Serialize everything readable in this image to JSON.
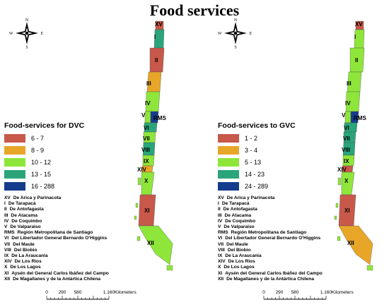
{
  "title": "Food services",
  "compass": {
    "n": "N",
    "s": "S",
    "e": "E",
    "w": "W"
  },
  "map_labels": [
    "XV",
    "I",
    "II",
    "III",
    "IV",
    "V",
    "RMS",
    "VI",
    "VII",
    "VIII",
    "IX",
    "XIV",
    "X",
    "XI",
    "XII"
  ],
  "panels": [
    {
      "legend_title": "Food-services for DVC",
      "legend": [
        {
          "label": "6 - 7",
          "color": "#c8584a"
        },
        {
          "label": "8 - 9",
          "color": "#e8a628"
        },
        {
          "label": "10 - 12",
          "color": "#8ee63a"
        },
        {
          "label": "13 - 15",
          "color": "#2aa57a"
        },
        {
          "label": "16 - 288",
          "color": "#153c8c"
        }
      ],
      "region_colors": [
        "#c8584a",
        "#2aa57a",
        "#c8584a",
        "#e8a628",
        "#8ee63a",
        "#8ee63a",
        "#153c8c",
        "#2aa57a",
        "#8ee63a",
        "#2aa57a",
        "#8ee63a",
        "#e8a628",
        "#8ee63a",
        "#c8584a",
        "#8ee63a"
      ]
    },
    {
      "legend_title": "Food-services to GVC",
      "legend": [
        {
          "label": "1 - 2",
          "color": "#c8584a"
        },
        {
          "label": "3 - 4",
          "color": "#e8a628"
        },
        {
          "label": "5 - 13",
          "color": "#8ee63a"
        },
        {
          "label": "14 - 23",
          "color": "#2aa57a"
        },
        {
          "label": "24 - 289",
          "color": "#153c8c"
        }
      ],
      "region_colors": [
        "#c8584a",
        "#8ee63a",
        "#8ee63a",
        "#8ee63a",
        "#8ee63a",
        "#8ee63a",
        "#153c8c",
        "#2aa57a",
        "#2aa57a",
        "#2aa57a",
        "#8ee63a",
        "#c8584a",
        "#8ee63a",
        "#c8584a",
        "#e8a628"
      ]
    }
  ],
  "regions": [
    {
      "code": "XV",
      "name": "De Arica y Parinacota"
    },
    {
      "code": "I",
      "name": "De Tarapacá"
    },
    {
      "code": "II",
      "name": "De Antofagasta"
    },
    {
      "code": "III",
      "name": "De Atacama"
    },
    {
      "code": "IV",
      "name": "De Coquimbo"
    },
    {
      "code": "V",
      "name": "De Valparaiso"
    },
    {
      "code": "RMS",
      "name": "Región Metropolitana de Santiago"
    },
    {
      "code": "VI",
      "name": "Del Libertador General Bernardo O'Higgins"
    },
    {
      "code": "VII",
      "name": "Del Maule"
    },
    {
      "code": "VIII",
      "name": "Del Biobio"
    },
    {
      "code": "IX",
      "name": "De La Araucania"
    },
    {
      "code": "XIV",
      "name": "De Los Rios"
    },
    {
      "code": "X",
      "name": "De Los Lagos"
    },
    {
      "code": "XI",
      "name": "Aysén del General Carlos Ibáñez del Campo"
    },
    {
      "code": "XII",
      "name": "De Magallanes y de la Antártica Chilena"
    }
  ],
  "scale": {
    "ticks": [
      "0",
      "290",
      "580",
      "1.160"
    ],
    "unit": "Kilometers"
  }
}
